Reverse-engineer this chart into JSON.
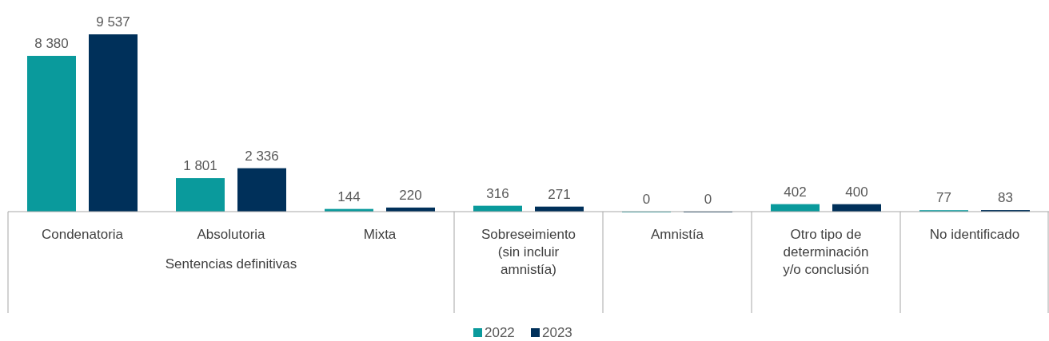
{
  "chart_data": {
    "type": "bar",
    "categories": [
      "Condenatoria",
      "Absolutoria",
      "Mixta",
      "Sobreseimiento (sin incluir amnistía)",
      "Amnistía",
      "Otro tipo de determinación y/o conclusión",
      "No identificado"
    ],
    "series": [
      {
        "name": "2022",
        "color": "#0a9a9c",
        "values": [
          8380,
          1801,
          144,
          316,
          0,
          402,
          77
        ],
        "value_labels": [
          "8 380",
          "1 801",
          "144",
          "316",
          "0",
          "402",
          "77"
        ]
      },
      {
        "name": "2023",
        "color": "#00305a",
        "values": [
          9537,
          2336,
          220,
          271,
          0,
          400,
          83
        ],
        "value_labels": [
          "9 537",
          "2 336",
          "220",
          "271",
          "0",
          "400",
          "83"
        ]
      }
    ],
    "annotations": [
      "Sentencias definitivas"
    ],
    "legend": "bottom"
  }
}
